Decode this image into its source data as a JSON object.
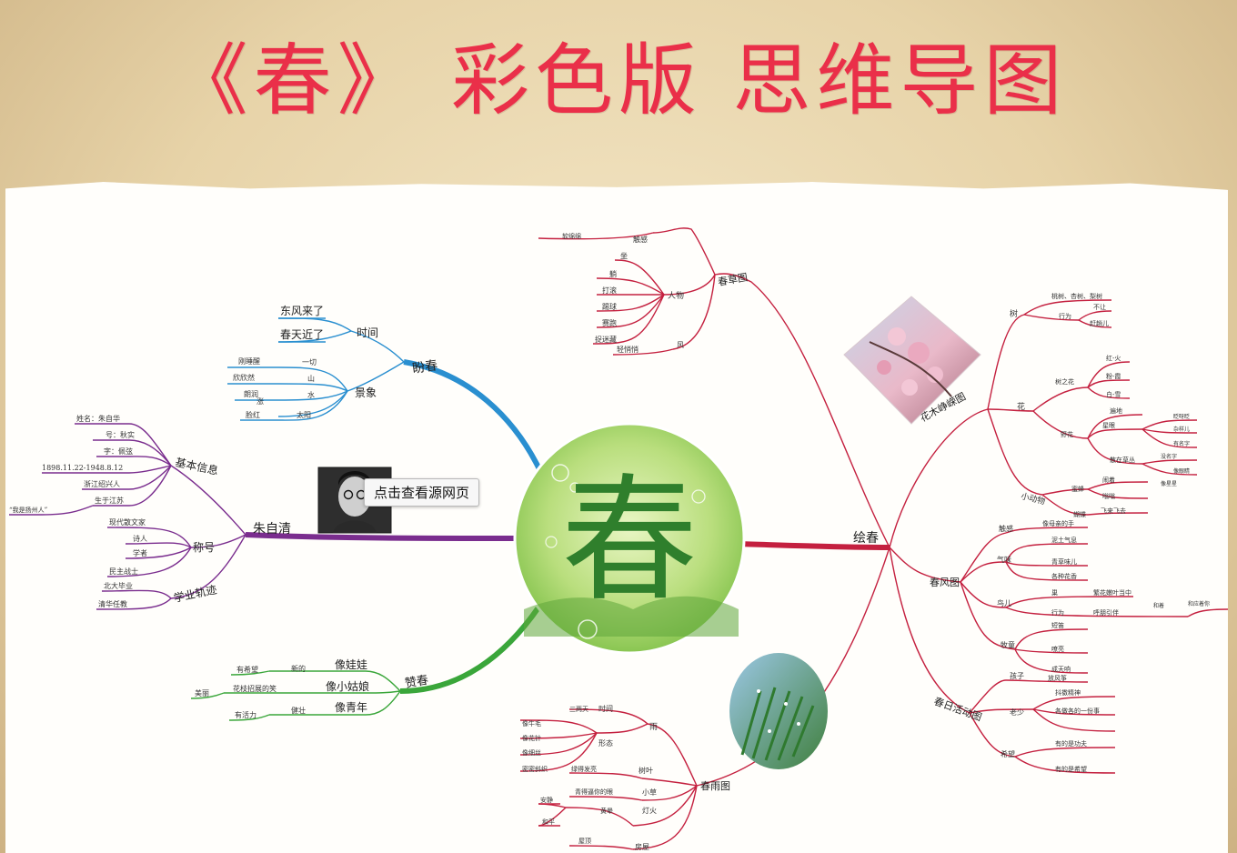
{
  "title": "《春》 彩色版 思维导图",
  "tooltip": "点击查看源网页",
  "center": {
    "glyph": "春"
  },
  "colors": {
    "title": "#ea2f49",
    "blue": "#2a8fd0",
    "purple": "#7a2d8e",
    "green": "#3aa63a",
    "red": "#c4203f"
  },
  "branches": {
    "panchun": {
      "label": "盼春",
      "time": {
        "label": "时间",
        "items": [
          "东风来了",
          "春天近了"
        ]
      },
      "scene": {
        "label": "景象",
        "items": [
          {
            "key": "一切",
            "val": "刚睡醒"
          },
          {
            "key": "山",
            "val": "欣欣然"
          },
          {
            "key": "水",
            "val": "朗润"
          },
          {
            "key": "太阳",
            "val": "涨"
          },
          {
            "key": "",
            "val": "脸红"
          }
        ]
      }
    },
    "author": {
      "label": "朱自清",
      "basic": {
        "label": "基本信息",
        "items": [
          "姓名：朱自华",
          "号：秋实",
          "字：佩弦",
          "1898.11.22-1948.8.12",
          "浙江绍兴人",
          "生于江苏"
        ],
        "note": "“我是扬州人”"
      },
      "titles": {
        "label": "称号",
        "items": [
          "现代散文家",
          "诗人",
          "学者",
          "民主战士"
        ]
      },
      "career": {
        "label": "学业轨迹",
        "items": [
          "北大毕业",
          "清华任教"
        ]
      }
    },
    "zanchun": {
      "label": "赞春",
      "items": [
        {
          "label": "像娃娃",
          "sub": "新的",
          "leaf": "有希望"
        },
        {
          "label": "像小姑娘",
          "sub": "花枝招展的笑",
          "leaf": "美丽"
        },
        {
          "label": "像青年",
          "sub": "健壮",
          "leaf": "有活力"
        }
      ]
    },
    "huichun": {
      "label": "绘春",
      "grass": {
        "label": "春草图",
        "touch": "触感",
        "touch_items": [
          "软绵绵"
        ],
        "people": "人物",
        "people_items": [
          "坐",
          "躺",
          "打滚",
          "踢球",
          "赛跑",
          "捉迷藏"
        ],
        "wind": "风",
        "wind_items": [
          "轻悄悄"
        ]
      },
      "flower": {
        "label": "花木峥嵘图",
        "tree": "树",
        "tree_items": [
          "桃树、杏树、梨树",
          "行为",
          "不让",
          "赶趟儿"
        ],
        "flower": "花",
        "flower_items": [
          "树之花",
          "红-火",
          "粉-霞",
          "白-雪",
          "野花",
          "遍地",
          "星眼",
          "散在草丛",
          "眨呀眨",
          "杂样儿",
          "有名字",
          "没名字",
          "像眼睛",
          "像星星"
        ],
        "animal": "小动物",
        "animal_items": [
          "蜜蜂",
          "闹着",
          "蝴蝶",
          "飞来飞去",
          "嗡嗡"
        ]
      },
      "wind": {
        "label": "春风图",
        "items": [
          "触感",
          "像母亲的手",
          "气味",
          "泥土气息",
          "青草味儿",
          "各种花香",
          "鸟儿",
          "巢",
          "繁花嫩叶当中",
          "行为",
          "呼朋引伴",
          "和着",
          "和应着你",
          "牧童",
          "短笛",
          "嘹亮",
          "成天响"
        ],
        "fly": "鸟儿"
      },
      "rain": {
        "label": "春雨图",
        "rain": "雨",
        "rain_items": [
          "时间",
          "三两天",
          "形态",
          "像牛毛",
          "像花针",
          "像细丝",
          "密密斜织"
        ],
        "leaf": "树叶",
        "leaf_items": [
          "绿得发亮"
        ],
        "grass": "小草",
        "grass_items": [
          "青得逼你的眼"
        ],
        "light": "灯火",
        "light_items": [
          "黄晕",
          "安静",
          "和平"
        ],
        "house": "房屋",
        "house_items": [
          "屋顶"
        ]
      },
      "activity": {
        "label": "春日活动图",
        "items": [
          "孩子",
          "放风筝",
          "老少",
          "抖擞精神",
          "各做各的一份事",
          "希望",
          "有的是功夫",
          "有的是希望"
        ]
      }
    }
  }
}
